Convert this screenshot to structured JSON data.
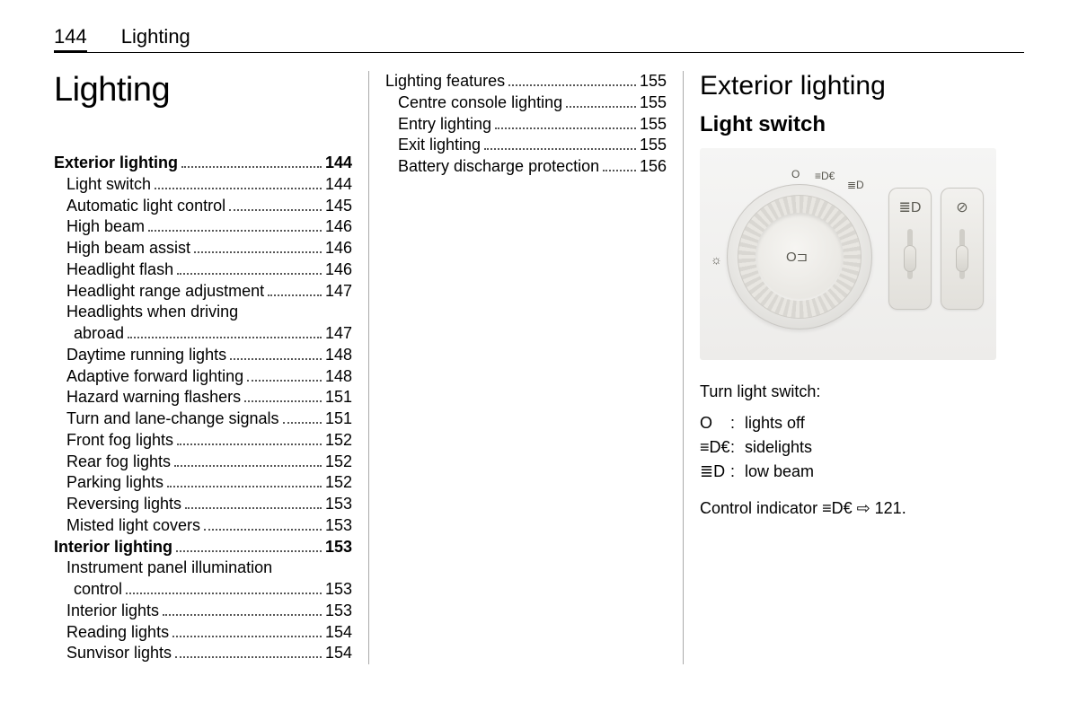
{
  "header": {
    "page_number": "144",
    "chapter": "Lighting"
  },
  "col1": {
    "title": "Lighting",
    "toc": [
      {
        "label": "Exterior lighting",
        "page": "144",
        "bold": true,
        "sub": false
      },
      {
        "label": "Light switch",
        "page": "144",
        "bold": false,
        "sub": true
      },
      {
        "label": "Automatic light control",
        "page": "145",
        "bold": false,
        "sub": true
      },
      {
        "label": "High beam",
        "page": "146",
        "bold": false,
        "sub": true
      },
      {
        "label": "High beam assist",
        "page": "146",
        "bold": false,
        "sub": true
      },
      {
        "label": "Headlight flash",
        "page": "146",
        "bold": false,
        "sub": true
      },
      {
        "label": "Headlight range adjustment",
        "page": "147",
        "bold": false,
        "sub": true
      },
      {
        "label": "Headlights when driving",
        "label2": "abroad",
        "page": "147",
        "bold": false,
        "sub": true,
        "multiline": true
      },
      {
        "label": "Daytime running lights",
        "page": "148",
        "bold": false,
        "sub": true
      },
      {
        "label": "Adaptive forward lighting",
        "page": "148",
        "bold": false,
        "sub": true
      },
      {
        "label": "Hazard warning flashers",
        "page": "151",
        "bold": false,
        "sub": true
      },
      {
        "label": "Turn and lane-change signals",
        "page": "151",
        "bold": false,
        "sub": true
      },
      {
        "label": "Front fog lights",
        "page": "152",
        "bold": false,
        "sub": true
      },
      {
        "label": "Rear fog lights",
        "page": "152",
        "bold": false,
        "sub": true
      },
      {
        "label": "Parking lights",
        "page": "152",
        "bold": false,
        "sub": true
      },
      {
        "label": "Reversing lights",
        "page": "153",
        "bold": false,
        "sub": true
      },
      {
        "label": "Misted light covers",
        "page": "153",
        "bold": false,
        "sub": true
      },
      {
        "label": "Interior lighting",
        "page": "153",
        "bold": true,
        "sub": false
      },
      {
        "label": "Instrument panel illumination",
        "label2": "control",
        "page": "153",
        "bold": false,
        "sub": true,
        "multiline": true
      },
      {
        "label": "Interior lights",
        "page": "153",
        "bold": false,
        "sub": true
      },
      {
        "label": "Reading lights",
        "page": "154",
        "bold": false,
        "sub": true
      },
      {
        "label": "Sunvisor lights",
        "page": "154",
        "bold": false,
        "sub": true
      }
    ]
  },
  "col2": {
    "toc": [
      {
        "label": "Lighting features",
        "page": "155",
        "bold": false,
        "sub": false
      },
      {
        "label": "Centre console lighting",
        "page": "155",
        "bold": false,
        "sub": true
      },
      {
        "label": "Entry lighting",
        "page": "155",
        "bold": false,
        "sub": true
      },
      {
        "label": "Exit lighting",
        "page": "155",
        "bold": false,
        "sub": true
      },
      {
        "label": "Battery discharge protection",
        "page": "156",
        "bold": false,
        "sub": true
      }
    ]
  },
  "col3": {
    "heading": "Exterior lighting",
    "subheading": "Light switch",
    "figure": {
      "dial_marks": {
        "off": "O",
        "side": "≡D€",
        "low": "≣D"
      },
      "center_glyph": "O⊐",
      "left_glyph": "☼",
      "thumb_icons": {
        "left": "≣D",
        "right": "⊘"
      }
    },
    "intro": "Turn light switch:",
    "defs": [
      {
        "sym": "O",
        "text": "lights off"
      },
      {
        "sym": "≡D€",
        "text": "sidelights"
      },
      {
        "sym": "≣D",
        "text": "low beam"
      }
    ],
    "indicator": "Control indicator ≡D€ ⇨ 121."
  }
}
